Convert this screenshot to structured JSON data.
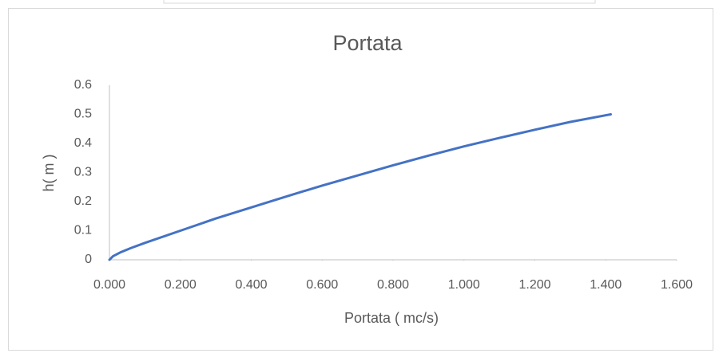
{
  "chart_data": {
    "type": "line",
    "title": "Portata",
    "x_label": "Portata ( mc/s)",
    "y_label": "h( m )",
    "x": [
      0,
      0.01,
      0.03,
      0.06,
      0.1,
      0.2,
      0.3,
      0.4,
      0.5,
      0.6,
      0.7,
      0.8,
      0.9,
      1.0,
      1.1,
      1.2,
      1.3,
      1.414
    ],
    "series": [
      {
        "name": "h",
        "color": "#4472c4",
        "values": [
          0,
          0.012,
          0.025,
          0.04,
          0.058,
          0.1,
          0.142,
          0.18,
          0.218,
          0.255,
          0.29,
          0.325,
          0.358,
          0.39,
          0.419,
          0.447,
          0.474,
          0.5
        ]
      }
    ],
    "xlim": [
      0,
      1.6
    ],
    "xticks": [
      {
        "value": 0,
        "label": "0.000"
      },
      {
        "value": 0.2,
        "label": "0.200"
      },
      {
        "value": 0.4,
        "label": "0.400"
      },
      {
        "value": 0.6,
        "label": "0.600"
      },
      {
        "value": 0.8,
        "label": "0.800"
      },
      {
        "value": 1.0,
        "label": "1.000"
      },
      {
        "value": 1.2,
        "label": "1.200"
      },
      {
        "value": 1.4,
        "label": "1.400"
      },
      {
        "value": 1.6,
        "label": "1.600"
      }
    ],
    "ylim": [
      0,
      0.6
    ],
    "yticks": [
      0,
      0.1,
      0.2,
      0.3,
      0.4,
      0.5,
      0.6
    ],
    "grid": false
  }
}
